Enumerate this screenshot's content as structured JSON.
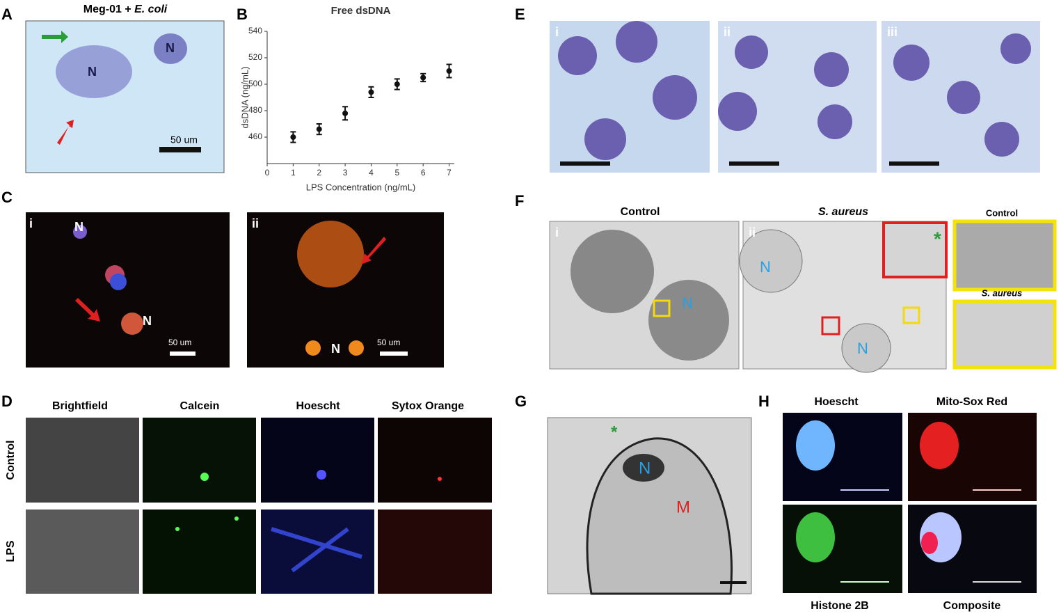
{
  "panels": {
    "A": {
      "letter": "A",
      "title_prefix": "Meg-01 + ",
      "title_italic": "E. coli",
      "nuclei": [
        "N",
        "N"
      ],
      "scale": "50 um"
    },
    "B": {
      "letter": "B"
    },
    "C": {
      "letter": "C",
      "sub": [
        "i",
        "ii"
      ],
      "nuclei": [
        "N",
        "N",
        "N"
      ],
      "scales": [
        "50 um",
        "50 um"
      ]
    },
    "D": {
      "letter": "D",
      "columns": [
        "Brightfield",
        "Calcein",
        "Hoescht",
        "Sytox Orange"
      ],
      "rows": [
        "Control",
        "LPS"
      ]
    },
    "E": {
      "letter": "E",
      "sub": [
        "i",
        "ii",
        "iii"
      ]
    },
    "F": {
      "letter": "F",
      "titles": [
        "Control",
        "S. aureus"
      ],
      "sub": [
        "i",
        "ii"
      ],
      "nuclei": [
        "N",
        "N",
        "N"
      ],
      "inset_titles": [
        "Control",
        "S. aureus"
      ],
      "asterisk": "*"
    },
    "G": {
      "letter": "G",
      "nucleus": "N",
      "mito": "M",
      "asterisk": "*"
    },
    "H": {
      "letter": "H",
      "top": [
        "Hoescht",
        "Mito-Sox Red"
      ],
      "bottom": [
        "Histone 2B",
        "Composite"
      ]
    }
  },
  "chart_data": {
    "type": "scatter",
    "title": "Free dsDNA",
    "x_label": "LPS Concentration (ng/mL)",
    "y_label": "dsDNA (ng/mL)",
    "x": [
      1,
      2,
      3,
      4,
      5,
      6,
      7
    ],
    "values": [
      460,
      466,
      478,
      494,
      500,
      505,
      510
    ],
    "errors": [
      4,
      4,
      5,
      4,
      4,
      3,
      5
    ],
    "color": "#111111",
    "xlim": [
      0,
      7.2
    ],
    "ylim": [
      440,
      540
    ],
    "xticks": [
      0,
      1,
      2,
      3,
      4,
      5,
      6,
      7
    ],
    "yticks": [
      460,
      480,
      500,
      520,
      540
    ]
  }
}
